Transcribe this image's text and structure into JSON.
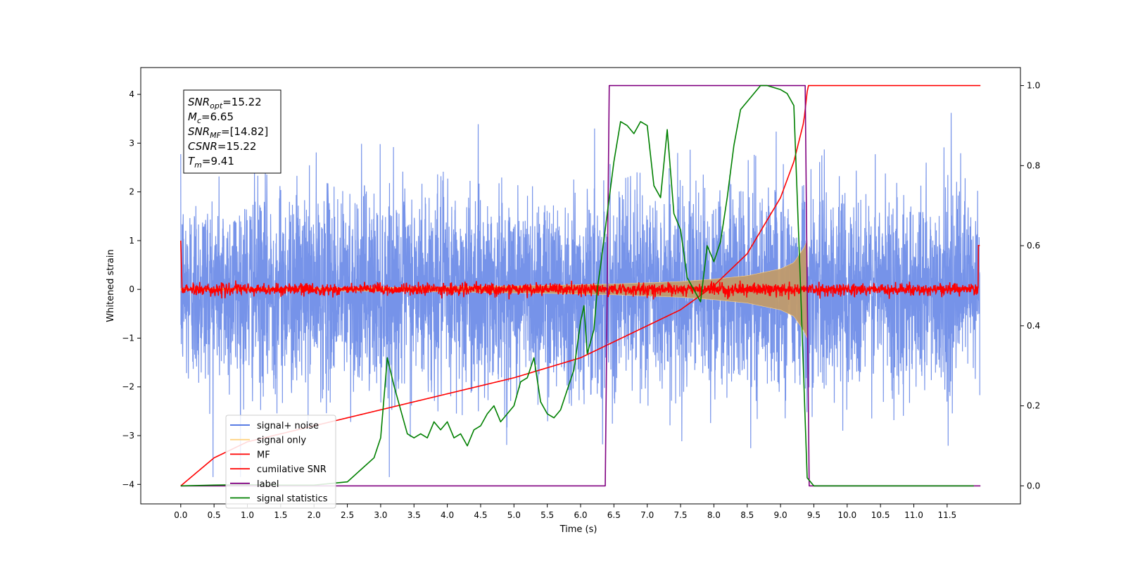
{
  "chart_data": {
    "type": "line",
    "xlabel": "Time (s)",
    "ylabel": "Whitened strain",
    "xlim": [
      -0.6,
      12.6
    ],
    "ylim": [
      -4.4,
      4.55
    ],
    "y2lim": [
      -0.045,
      1.045
    ],
    "x_ticks": [
      0.0,
      0.5,
      1.0,
      1.5,
      2.0,
      2.5,
      3.0,
      3.5,
      4.0,
      4.5,
      5.0,
      5.5,
      6.0,
      6.5,
      7.0,
      7.5,
      8.0,
      8.5,
      9.0,
      9.5,
      10.0,
      10.5,
      11.0,
      11.5
    ],
    "x_tick_labels": [
      "0.0",
      "0.5",
      "1.0",
      "1.5",
      "2.0",
      "2.5",
      "3.0",
      "3.5",
      "4.0",
      "4.5",
      "5.0",
      "5.5",
      "6.0",
      "6.5",
      "7.0",
      "7.5",
      "8.0",
      "8.5",
      "9.0",
      "9.5",
      "10.0",
      "10.5",
      "11.0",
      "11.5"
    ],
    "y_ticks": [
      -4,
      -3,
      -2,
      -1,
      0,
      1,
      2,
      3,
      4
    ],
    "y_tick_labels": [
      "−4",
      "−3",
      "−2",
      "−1",
      "0",
      "1",
      "2",
      "3",
      "4"
    ],
    "y2_ticks": [
      0.0,
      0.2,
      0.4,
      0.6,
      0.8,
      1.0
    ],
    "y2_tick_labels": [
      "0.0",
      "0.2",
      "0.4",
      "0.6",
      "0.8",
      "1.0"
    ],
    "grid": false,
    "legend_position": "lower-left",
    "legend": [
      {
        "label": "signal+ noise",
        "color": "#4169e1"
      },
      {
        "label": "signal only",
        "color": "#ffd27f"
      },
      {
        "label": "MF",
        "color": "#ff0000"
      },
      {
        "label": "cumilative SNR",
        "color": "#ff0000"
      },
      {
        "label": "label",
        "color": "#800080"
      },
      {
        "label": "signal statistics",
        "color": "#008000"
      }
    ],
    "annotation": {
      "lines": [
        {
          "base": "SNR",
          "sub": "opt",
          "rest": "=15.22"
        },
        {
          "base": "M",
          "sub": "c",
          "rest": "=6.65"
        },
        {
          "base": "SNR",
          "sub": "MF",
          "rest": "=[14.82]"
        },
        {
          "base": "CSNR",
          "sub": "",
          "rest": "=15.22"
        },
        {
          "base": "T",
          "sub": "m",
          "rest": "=9.41"
        }
      ]
    },
    "series": [
      {
        "name": "signal+ noise",
        "axis": "left",
        "color": "#4169e1",
        "description": "noisy whitened strain, roughly unit variance, spans about -3.8 to 4.0",
        "x_range": [
          0.0,
          11.99
        ],
        "approx_amplitude": 1.0
      },
      {
        "name": "signal only",
        "axis": "left",
        "color": "#ffd27f",
        "description": "chirp envelope growing until merger near 9.4 s",
        "x": [
          0.0,
          2.0,
          4.0,
          5.5,
          6.5,
          7.5,
          8.0,
          8.5,
          9.0,
          9.2,
          9.35,
          9.4
        ],
        "y": [
          0.02,
          0.03,
          0.05,
          0.08,
          0.11,
          0.16,
          0.21,
          0.28,
          0.42,
          0.55,
          0.85,
          1.0
        ]
      },
      {
        "name": "MF",
        "axis": "left",
        "color": "#ff0000",
        "description": "matched filter output, near zero with small fluctuations",
        "x_range": [
          0.0,
          11.99
        ],
        "approx_amplitude": 0.06
      },
      {
        "name": "cumilative SNR",
        "axis": "right",
        "x": [
          0.0,
          0.5,
          1.0,
          2.0,
          3.0,
          4.0,
          5.0,
          6.0,
          6.5,
          7.0,
          7.5,
          8.0,
          8.5,
          9.0,
          9.2,
          9.35,
          9.41,
          12.0
        ],
        "y": [
          0.0,
          0.07,
          0.11,
          0.15,
          0.19,
          0.23,
          0.27,
          0.32,
          0.36,
          0.4,
          0.44,
          0.5,
          0.58,
          0.72,
          0.81,
          0.91,
          1.0,
          1.0
        ]
      },
      {
        "name": "label",
        "axis": "right",
        "x": [
          0.0,
          6.37,
          6.43,
          9.37,
          9.43,
          12.0
        ],
        "y": [
          0.0,
          0.0,
          1.0,
          1.0,
          0.0,
          0.0
        ]
      },
      {
        "name": "signal statistics",
        "axis": "right",
        "x": [
          0.0,
          0.5,
          1.0,
          1.5,
          2.0,
          2.5,
          2.7,
          2.9,
          3.0,
          3.1,
          3.2,
          3.3,
          3.4,
          3.5,
          3.6,
          3.7,
          3.8,
          3.9,
          4.0,
          4.1,
          4.2,
          4.3,
          4.4,
          4.5,
          4.6,
          4.7,
          4.8,
          4.9,
          5.0,
          5.1,
          5.2,
          5.3,
          5.4,
          5.5,
          5.6,
          5.7,
          5.8,
          5.9,
          6.0,
          6.05,
          6.1,
          6.2,
          6.25,
          6.3,
          6.4,
          6.5,
          6.6,
          6.7,
          6.8,
          6.9,
          7.0,
          7.1,
          7.2,
          7.3,
          7.4,
          7.5,
          7.6,
          7.7,
          7.8,
          7.9,
          8.0,
          8.1,
          8.2,
          8.3,
          8.4,
          8.5,
          8.6,
          8.7,
          8.8,
          9.0,
          9.1,
          9.2,
          9.3,
          9.4,
          9.5,
          9.7,
          10.0,
          11.0,
          11.9
        ],
        "y": [
          0.0,
          0.002,
          0.003,
          0.002,
          0.002,
          0.01,
          0.04,
          0.07,
          0.12,
          0.32,
          0.25,
          0.19,
          0.13,
          0.12,
          0.13,
          0.12,
          0.16,
          0.14,
          0.16,
          0.12,
          0.13,
          0.1,
          0.14,
          0.15,
          0.18,
          0.2,
          0.16,
          0.18,
          0.2,
          0.26,
          0.27,
          0.32,
          0.21,
          0.18,
          0.17,
          0.19,
          0.24,
          0.29,
          0.41,
          0.45,
          0.33,
          0.39,
          0.49,
          0.55,
          0.68,
          0.81,
          0.91,
          0.9,
          0.88,
          0.91,
          0.9,
          0.75,
          0.72,
          0.89,
          0.68,
          0.64,
          0.52,
          0.49,
          0.46,
          0.6,
          0.56,
          0.61,
          0.72,
          0.85,
          0.94,
          0.96,
          0.98,
          1.0,
          1.0,
          0.99,
          0.98,
          0.95,
          0.5,
          0.02,
          0.0,
          0.0,
          0.0,
          0.0,
          0.0
        ]
      }
    ]
  }
}
